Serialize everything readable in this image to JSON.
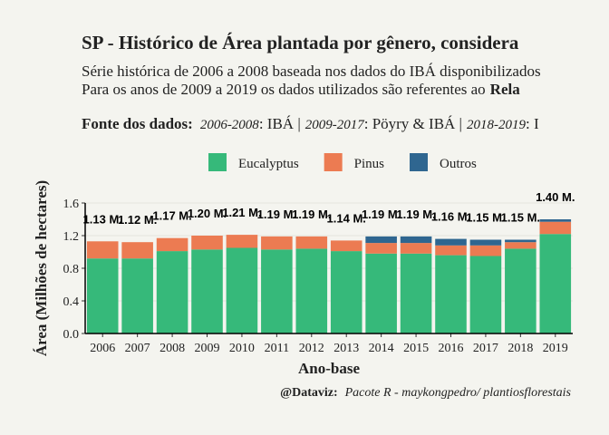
{
  "chart_data": {
    "type": "stacked_bar",
    "title": "SP - Histórico de Área plantada por gênero, considera",
    "subtitle": [
      "Série histórica de 2006 a 2008 baseada nos dados do IBÁ disponibilizados",
      "Para os anos de 2009 a 2019 os dados utilizados são referentes ao",
      "Rela"
    ],
    "source": [
      "Fonte dos dados:",
      "2006-2008",
      ": IBÁ |",
      "2009-2017",
      ": Pöyry & IBÁ |",
      "2018-2019",
      ": I"
    ],
    "caption": [
      "@Dataviz:",
      "Pacote R - maykongpedro/ plantiosflorestais"
    ],
    "x_label": "Ano-base",
    "y_label": "Área (Milhões de hectares)",
    "categories": [
      "2006",
      "2007",
      "2008",
      "2009",
      "2010",
      "2011",
      "2012",
      "2013",
      "2014",
      "2015",
      "2016",
      "2017",
      "2018",
      "2019"
    ],
    "series": [
      {
        "name": "Eucalyptus",
        "color": "#36b97a",
        "values": [
          0.92,
          0.92,
          1.01,
          1.03,
          1.05,
          1.03,
          1.04,
          1.01,
          0.98,
          0.98,
          0.96,
          0.95,
          1.04,
          1.22
        ]
      },
      {
        "name": "Pinus",
        "color": "#ec7b52",
        "values": [
          0.21,
          0.2,
          0.16,
          0.17,
          0.16,
          0.16,
          0.15,
          0.13,
          0.13,
          0.13,
          0.12,
          0.13,
          0.08,
          0.15
        ]
      },
      {
        "name": "Outros",
        "color": "#2f6690",
        "values": [
          0,
          0,
          0,
          0,
          0,
          0,
          0,
          0,
          0.08,
          0.08,
          0.08,
          0.07,
          0.03,
          0.03
        ]
      }
    ],
    "totals": {
      "values": [
        1.13,
        1.12,
        1.17,
        1.2,
        1.21,
        1.19,
        1.19,
        1.14,
        1.19,
        1.19,
        1.16,
        1.15,
        1.15,
        1.4
      ],
      "value_labels": [
        "1.13 M.",
        "1.12 M.",
        "1.17 M.",
        "1.20 M.",
        "1.21 M.",
        "1.19 M.",
        "1.19 M.",
        "1.14 M.",
        "1.19 M.",
        "1.19 M.",
        "1.16 M.",
        "1.15 M.",
        "1.15 M.",
        "1.40 M."
      ]
    },
    "ylim": [
      0,
      1.6
    ],
    "yticks": [
      {
        "value": 0,
        "label": "0.0"
      },
      0.4,
      0.8,
      1.2,
      1.6
    ],
    "grid": true,
    "legend": "top"
  }
}
